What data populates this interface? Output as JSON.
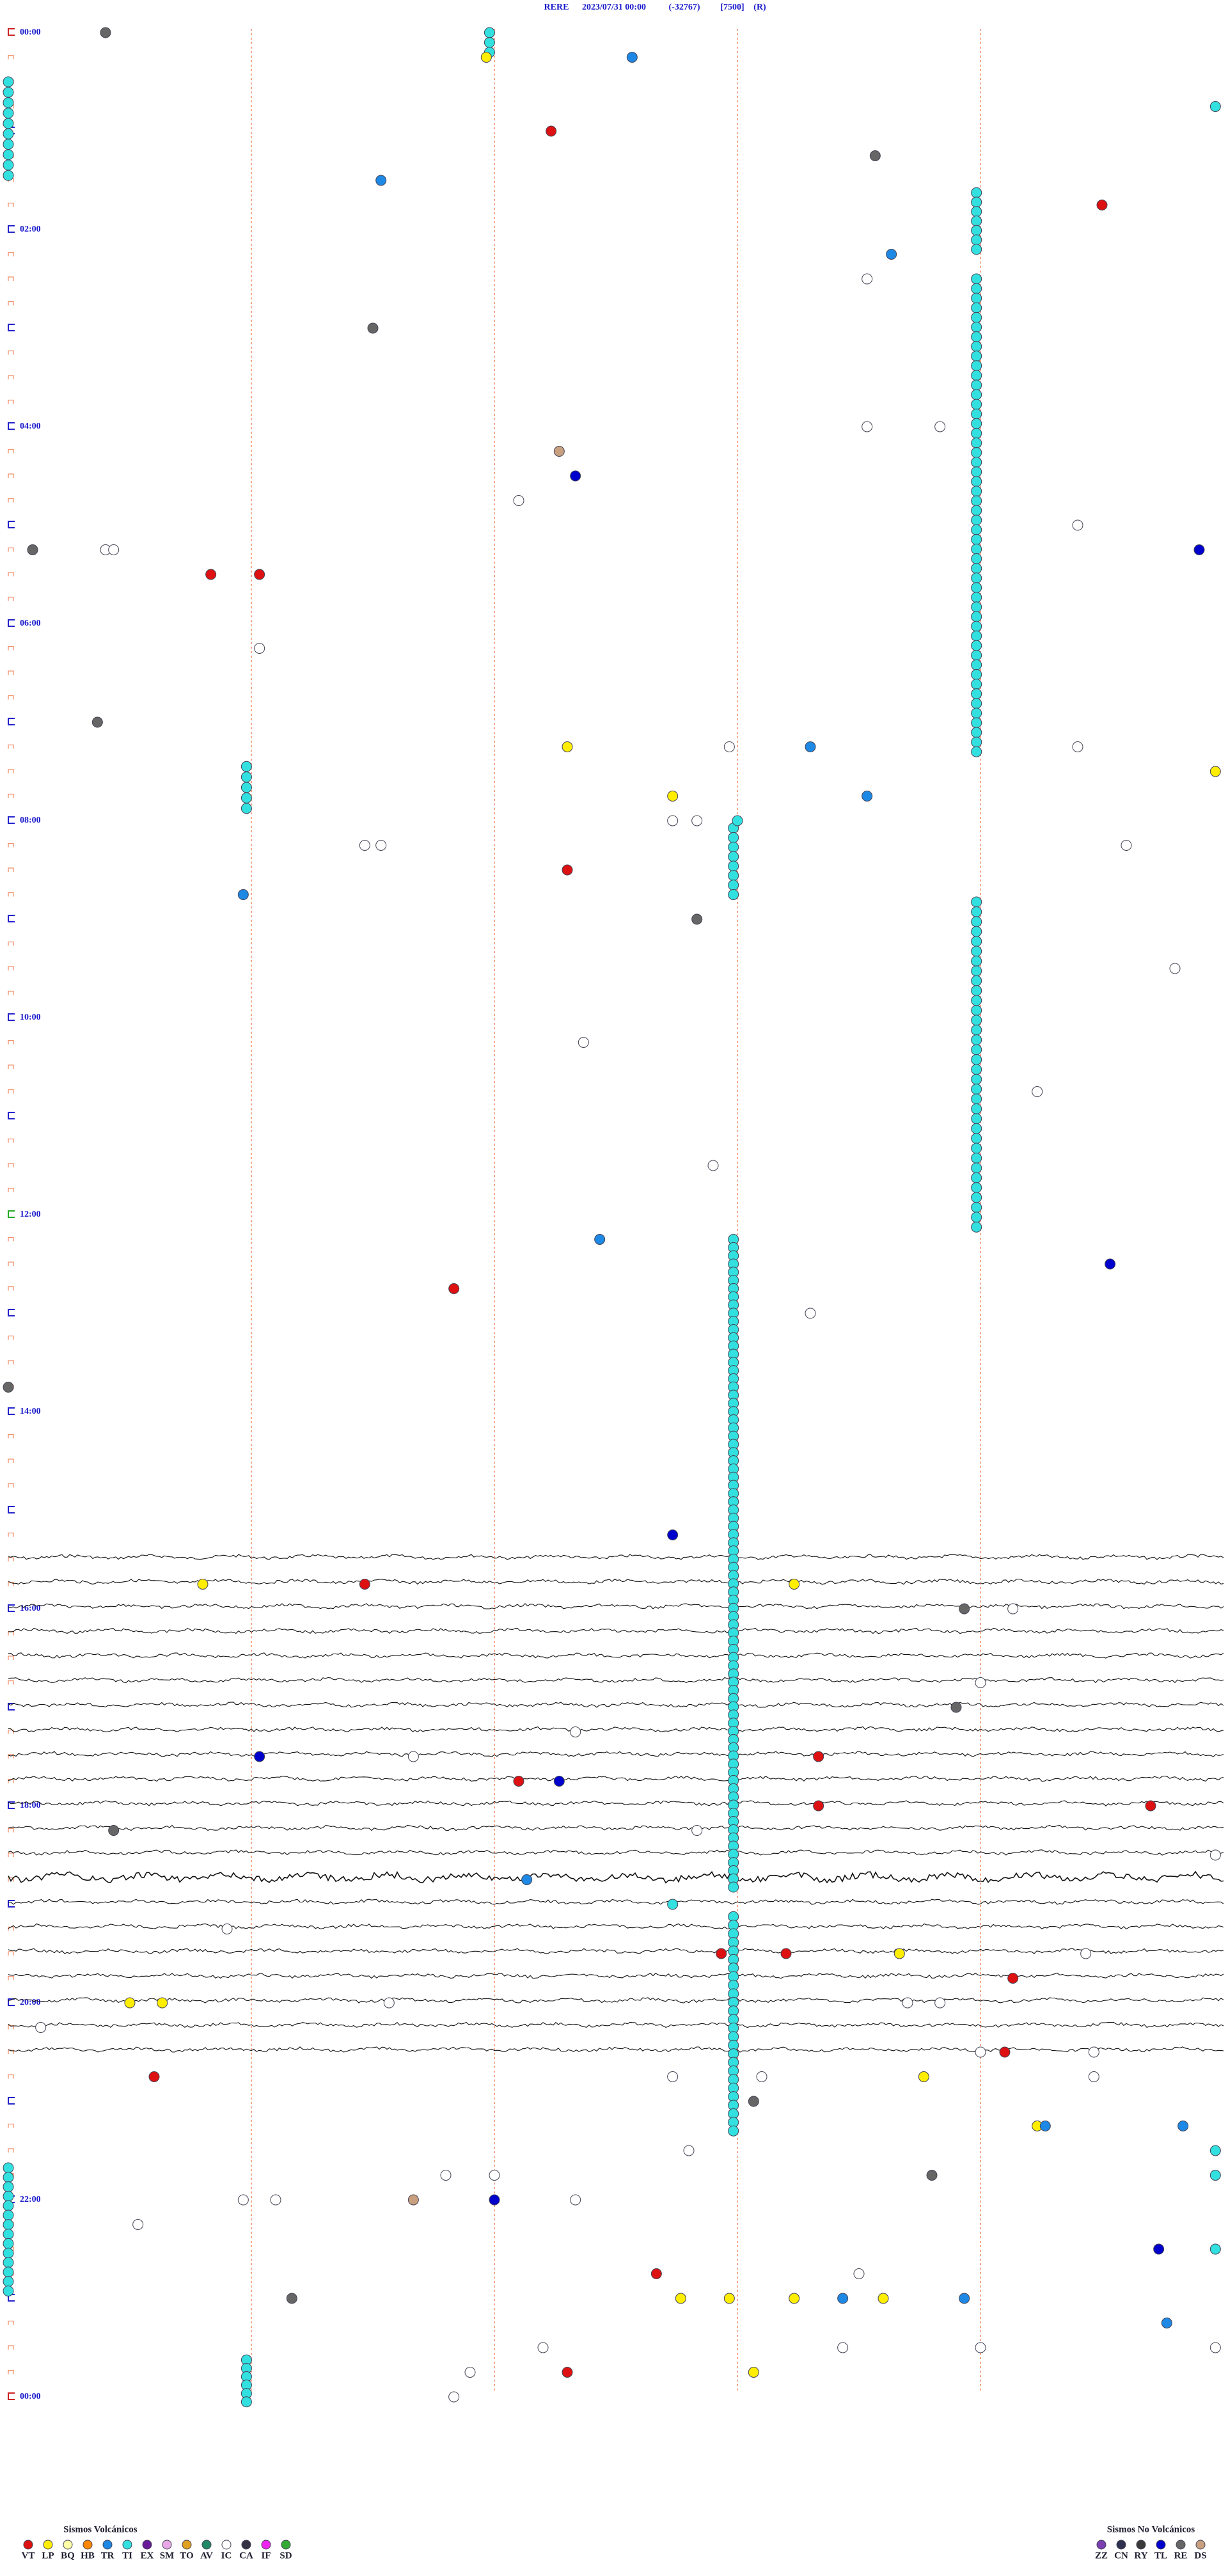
{
  "title": {
    "station": "RERE",
    "start": "2023/07/31 00:00",
    "offset": "(-32767)",
    "gain": "[7500]",
    "mode": "(R)"
  },
  "row_minutes": 15,
  "minute_grid": [
    3,
    6,
    9,
    12
  ],
  "hour_labels": [
    "00:00",
    "02:00",
    "04:00",
    "06:00",
    "08:00",
    "10:00",
    "12:00",
    "14:00",
    "16:00",
    "18:00",
    "20:00",
    "22:00",
    "00:00"
  ],
  "colors": {
    "VT": "#dd1111",
    "LP": "#ffee00",
    "BQ": "#ffffa8",
    "HB": "#ff8800",
    "TR": "#1e88e5",
    "TI": "#33e0e0",
    "EX": "#6a1b9a",
    "SM": "#e8a8e8",
    "TO": "#e0a020",
    "AV": "#228866",
    "IC": "#ffffff",
    "CA": "#333344",
    "IF": "#ee22ee",
    "SD": "#33aa33",
    "ZZ": "#7a3fb0",
    "CN": "#303050",
    "RY": "#3a3a3a",
    "TL": "#0000cc",
    "RE": "#666666",
    "DS": "#c8a080"
  },
  "legend": {
    "volcanic": {
      "title": "Sismos Volcánicos",
      "codes": [
        "VT",
        "LP",
        "BQ",
        "HB",
        "TR",
        "TI",
        "EX",
        "SM",
        "TO",
        "AV",
        "IC",
        "CA",
        "IF",
        "SD"
      ]
    },
    "non_volcanic": {
      "title": "Sismos No Volcánicos",
      "codes": [
        "ZZ",
        "CN",
        "RY",
        "TL",
        "RE",
        "DS"
      ]
    }
  },
  "events": [
    [
      "RE",
      1.2
    ],
    [
      "LP",
      20.9
    ],
    [
      "TR",
      22.7
    ],
    [
      "TI",
      59.9
    ],
    [
      "VT",
      66.7
    ],
    [
      "RE",
      85.7
    ],
    [
      "TR",
      94.6
    ],
    [
      "VT",
      118.5
    ],
    [
      "TR",
      145.9
    ],
    [
      "IC",
      160.6
    ],
    [
      "RE",
      184.5
    ],
    [
      "IC",
      250.6
    ],
    [
      "IC",
      251.5
    ],
    [
      "DS",
      261.8
    ],
    [
      "TL",
      277.0
    ],
    [
      "IC",
      291.3
    ],
    [
      "IC",
      313.2
    ],
    [
      "IC",
      316.2
    ],
    [
      "RE",
      315.3
    ],
    [
      "IC",
      316.3
    ],
    [
      "TL",
      329.7
    ],
    [
      "VT",
      332.5
    ],
    [
      "VT",
      333.1
    ],
    [
      "IC",
      378.1
    ],
    [
      "RE",
      421.1
    ],
    [
      "IC",
      448.2
    ],
    [
      "LP",
      441.9
    ],
    [
      "IC",
      443.9
    ],
    [
      "TR",
      444.9
    ],
    [
      "LP",
      464.9
    ],
    [
      "LP",
      473.2
    ],
    [
      "TR",
      475.6
    ],
    [
      "TI",
      489.0
    ],
    [
      "IC",
      488.2
    ],
    [
      "IC",
      488.5
    ],
    [
      "IC",
      508.8
    ],
    [
      "IC",
      499.6
    ],
    [
      "IC",
      499.4
    ],
    [
      "VT",
      516.9
    ],
    [
      "TR",
      527.9
    ],
    [
      "RE",
      548.5
    ],
    [
      "IC",
      584.4
    ],
    [
      "IC",
      622.1
    ],
    [
      "IC",
      657.7
    ],
    [
      "IC",
      698.7
    ],
    [
      "TR",
      742.3
    ],
    [
      "VT",
      770.5
    ],
    [
      "TL",
      763.6
    ],
    [
      "IC",
      789.9
    ],
    [
      "RE",
      825.0
    ],
    [
      "TL",
      923.2
    ],
    [
      "VT",
      949.4
    ],
    [
      "LP",
      947.4
    ],
    [
      "LP",
      954.7
    ],
    [
      "RE",
      971.8
    ],
    [
      "IC",
      972.4
    ],
    [
      "RE",
      1031.7
    ],
    [
      "IC",
      1017.0
    ],
    [
      "IC",
      1042.0
    ],
    [
      "TL",
      1053.1
    ],
    [
      "VT",
      1060.0
    ],
    [
      "IC",
      1055.0
    ],
    [
      "VT",
      1071.3
    ],
    [
      "TL",
      1071.8
    ],
    [
      "VT",
      1090.0
    ],
    [
      "VT",
      1094.1
    ],
    [
      "IC",
      1103.5
    ],
    [
      "RE",
      1096.3
    ],
    [
      "IC",
      1124.9
    ],
    [
      "TR",
      1131.4
    ],
    [
      "TI",
      1148.2
    ],
    [
      "IC",
      1157.7
    ],
    [
      "VT",
      1178.8
    ],
    [
      "VT",
      1179.6
    ],
    [
      "LP",
      1181.0
    ],
    [
      "IC",
      1183.3
    ],
    [
      "VT",
      1197.4
    ],
    [
      "LP",
      1201.5
    ],
    [
      "LP",
      1201.9
    ],
    [
      "IC",
      1204.7
    ],
    [
      "IC",
      1211.1
    ],
    [
      "IC",
      1211.5
    ],
    [
      "IC",
      1215.4
    ],
    [
      "VT",
      1242.3
    ],
    [
      "IC",
      1242.0
    ],
    [
      "IC",
      1243.4
    ],
    [
      "VT",
      1246.8
    ],
    [
      "IC",
      1253.2
    ],
    [
      "IC",
      1254.3
    ],
    [
      "LP",
      1256.3
    ],
    [
      "IC",
      1258.4
    ],
    [
      "RE",
      1269.2
    ],
    [
      "LP",
      1287.7
    ],
    [
      "TR",
      1287.8
    ],
    [
      "TR",
      1289.5
    ],
    [
      "TI",
      1304.9
    ],
    [
      "IC",
      1298.4
    ],
    [
      "IC",
      1310.4
    ],
    [
      "IC",
      1311.0
    ],
    [
      "RE",
      1316.4
    ],
    [
      "TI",
      1319.9
    ],
    [
      "DS",
      1325.0
    ],
    [
      "IC",
      1327.0
    ],
    [
      "TL",
      1326.0
    ],
    [
      "IC",
      1322.9
    ],
    [
      "IC",
      1323.3
    ],
    [
      "IC",
      1336.6
    ],
    [
      "TL",
      1364.2
    ],
    [
      "TI",
      1364.9
    ],
    [
      "VT",
      1373.0
    ],
    [
      "IC",
      1375.5
    ],
    [
      "RE",
      1383.5
    ],
    [
      "LP",
      1388.3
    ],
    [
      "LP",
      1388.9
    ],
    [
      "LP",
      1389.7
    ],
    [
      "TR",
      1390.3
    ],
    [
      "LP",
      1390.8
    ],
    [
      "TR",
      1391.8
    ],
    [
      "TR",
      1409.3
    ],
    [
      "IC",
      1416.6
    ],
    [
      "IC",
      1420.3
    ],
    [
      "IC",
      1430.7
    ],
    [
      "VT",
      1431.9
    ],
    [
      "LP",
      1434.2
    ],
    [
      "IC",
      1424.9
    ],
    [
      "IC",
      1422.0
    ],
    [
      "IC",
      1445.5
    ]
  ],
  "chains": [
    {
      "c": "TI",
      "at": 5.94,
      "from_row": 0,
      "to_row": 0.8,
      "n": 3
    },
    {
      "c": "TI",
      "at": 0,
      "from_row": 2.0,
      "to_row": 5.8,
      "n": 10
    },
    {
      "c": "TI",
      "at": 11.95,
      "from_row": 6.5,
      "to_row": 8.8,
      "n": 7
    },
    {
      "c": "TI",
      "at": 11.95,
      "from_row": 10.0,
      "to_row": 29.2,
      "n": 50
    },
    {
      "c": "TI",
      "at": 2.94,
      "from_row": 29.8,
      "to_row": 31.5,
      "n": 5
    },
    {
      "c": "TI",
      "at": 8.95,
      "from_row": 32.3,
      "to_row": 35.0,
      "n": 8
    },
    {
      "c": "TI",
      "at": 11.95,
      "from_row": 35.3,
      "to_row": 48.5,
      "n": 34
    },
    {
      "c": "TI",
      "at": 8.95,
      "from_row": 49.0,
      "to_row": 75.3,
      "n": 80
    },
    {
      "c": "TI",
      "at": 8.95,
      "from_row": 76.5,
      "to_row": 85.2,
      "n": 26
    },
    {
      "c": "TI",
      "at": 0,
      "from_row": 86.7,
      "to_row": 91.7,
      "n": 14
    },
    {
      "c": "TI",
      "at": 2.94,
      "from_row": 94.5,
      "to_row": 96.2,
      "n": 6
    }
  ]
}
